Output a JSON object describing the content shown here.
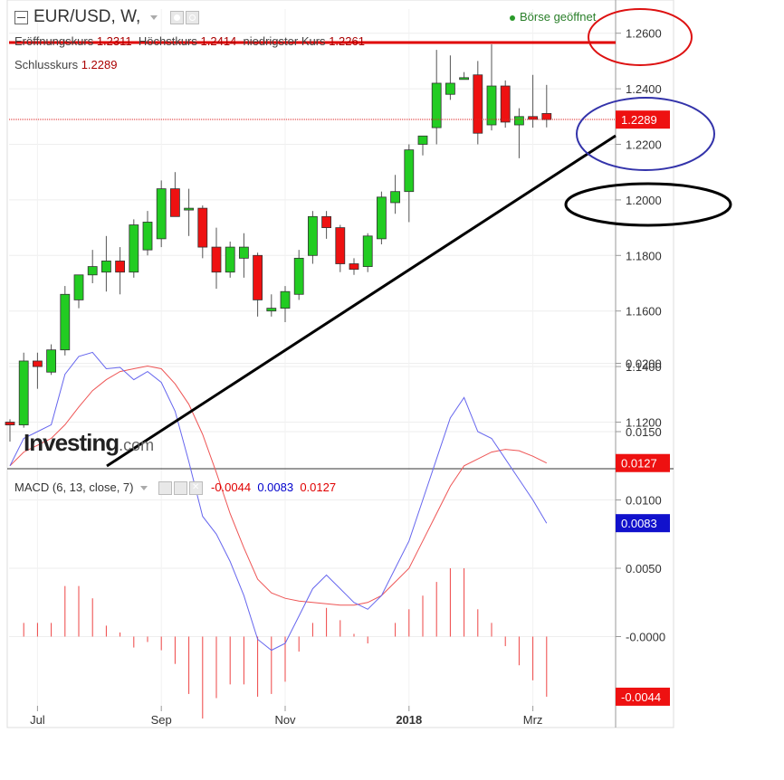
{
  "header": {
    "symbol": "EUR/USD, W,",
    "market_status": "Börse geöffnet",
    "ohlc1": [
      {
        "label": "Eröffnungskurs",
        "value": "1.2311"
      },
      {
        "label": "Höchstkurs",
        "value": "1.2414"
      },
      {
        "label": "niedrigster Kurs",
        "value": "1.2261"
      }
    ],
    "ohlc2": [
      {
        "label": "Schlusskurs",
        "value": "1.2289"
      }
    ]
  },
  "brand": {
    "name": "Investing",
    "suffix": ".com"
  },
  "macd_header": {
    "label": "MACD (6, 13, close, 7)",
    "values": [
      {
        "text": "-0.0044",
        "color": "#e00000"
      },
      {
        "text": "0.0083",
        "color": "#0000cc"
      },
      {
        "text": "0.0127",
        "color": "#e00000"
      }
    ]
  },
  "colors": {
    "up": "#22cc22",
    "down": "#ee1111",
    "macd_line": "#6666ee",
    "signal_line": "#ee5555",
    "hist": "#ee4444"
  },
  "price_axis": {
    "ticks": [
      "1.1200",
      "1.1400",
      "1.1600",
      "1.1800",
      "1.2000",
      "1.2200",
      "1.2400",
      "1.2600"
    ],
    "current": "1.2289"
  },
  "macd_axis": {
    "ticks": [
      "0.0200",
      "0.0150",
      "0.0100",
      "0.0050",
      "-0.0000"
    ],
    "badges": [
      "0.0127",
      "0.0083",
      "-0.0044"
    ]
  },
  "x_axis": {
    "labels": [
      "Jul",
      "Sep",
      "Nov",
      "2018",
      "Mrz"
    ]
  },
  "chart_data": {
    "type": "candlestick",
    "title": "EUR/USD, W,",
    "ylim": [
      1.103,
      1.268
    ],
    "candles": [
      {
        "o": 1.12,
        "h": 1.121,
        "l": 1.113,
        "c": 1.119
      },
      {
        "o": 1.119,
        "h": 1.145,
        "l": 1.118,
        "c": 1.142
      },
      {
        "o": 1.142,
        "h": 1.145,
        "l": 1.132,
        "c": 1.14
      },
      {
        "o": 1.138,
        "h": 1.148,
        "l": 1.137,
        "c": 1.146
      },
      {
        "o": 1.146,
        "h": 1.169,
        "l": 1.144,
        "c": 1.166
      },
      {
        "o": 1.164,
        "h": 1.172,
        "l": 1.161,
        "c": 1.173
      },
      {
        "o": 1.173,
        "h": 1.182,
        "l": 1.17,
        "c": 1.176
      },
      {
        "o": 1.174,
        "h": 1.187,
        "l": 1.167,
        "c": 1.178
      },
      {
        "o": 1.178,
        "h": 1.183,
        "l": 1.166,
        "c": 1.174
      },
      {
        "o": 1.174,
        "h": 1.193,
        "l": 1.172,
        "c": 1.191
      },
      {
        "o": 1.182,
        "h": 1.196,
        "l": 1.18,
        "c": 1.192
      },
      {
        "o": 1.186,
        "h": 1.207,
        "l": 1.183,
        "c": 1.204
      },
      {
        "o": 1.204,
        "h": 1.21,
        "l": 1.195,
        "c": 1.194
      },
      {
        "o": 1.197,
        "h": 1.204,
        "l": 1.187,
        "c": 1.197
      },
      {
        "o": 1.197,
        "h": 1.198,
        "l": 1.179,
        "c": 1.183
      },
      {
        "o": 1.183,
        "h": 1.19,
        "l": 1.168,
        "c": 1.174
      },
      {
        "o": 1.174,
        "h": 1.185,
        "l": 1.172,
        "c": 1.183
      },
      {
        "o": 1.179,
        "h": 1.188,
        "l": 1.172,
        "c": 1.183
      },
      {
        "o": 1.18,
        "h": 1.181,
        "l": 1.158,
        "c": 1.164
      },
      {
        "o": 1.16,
        "h": 1.166,
        "l": 1.158,
        "c": 1.161
      },
      {
        "o": 1.161,
        "h": 1.169,
        "l": 1.156,
        "c": 1.167
      },
      {
        "o": 1.166,
        "h": 1.182,
        "l": 1.164,
        "c": 1.179
      },
      {
        "o": 1.18,
        "h": 1.196,
        "l": 1.177,
        "c": 1.194
      },
      {
        "o": 1.194,
        "h": 1.196,
        "l": 1.186,
        "c": 1.19
      },
      {
        "o": 1.19,
        "h": 1.191,
        "l": 1.174,
        "c": 1.177
      },
      {
        "o": 1.177,
        "h": 1.179,
        "l": 1.173,
        "c": 1.175
      },
      {
        "o": 1.176,
        "h": 1.188,
        "l": 1.174,
        "c": 1.187
      },
      {
        "o": 1.186,
        "h": 1.203,
        "l": 1.184,
        "c": 1.201
      },
      {
        "o": 1.199,
        "h": 1.209,
        "l": 1.195,
        "c": 1.203
      },
      {
        "o": 1.203,
        "h": 1.22,
        "l": 1.192,
        "c": 1.218
      },
      {
        "o": 1.22,
        "h": 1.223,
        "l": 1.216,
        "c": 1.223
      },
      {
        "o": 1.226,
        "h": 1.254,
        "l": 1.22,
        "c": 1.242
      },
      {
        "o": 1.238,
        "h": 1.252,
        "l": 1.236,
        "c": 1.242
      },
      {
        "o": 1.244,
        "h": 1.246,
        "l": 1.244,
        "c": 1.244
      },
      {
        "o": 1.245,
        "h": 1.25,
        "l": 1.22,
        "c": 1.224
      },
      {
        "o": 1.227,
        "h": 1.256,
        "l": 1.225,
        "c": 1.241
      },
      {
        "o": 1.241,
        "h": 1.243,
        "l": 1.226,
        "c": 1.228
      },
      {
        "o": 1.227,
        "h": 1.233,
        "l": 1.215,
        "c": 1.23
      },
      {
        "o": 1.23,
        "h": 1.245,
        "l": 1.226,
        "c": 1.229
      },
      {
        "o": 1.2311,
        "h": 1.2414,
        "l": 1.2261,
        "c": 1.2289
      }
    ],
    "macd": {
      "ylim": [
        -0.0135,
        0.0225
      ],
      "macd_line": [
        0.0125,
        0.0145,
        0.015,
        0.0155,
        0.0192,
        0.0205,
        0.0208,
        0.0196,
        0.0197,
        0.0188,
        0.0194,
        0.0186,
        0.0165,
        0.0128,
        0.0088,
        0.0075,
        0.0055,
        0.003,
        -0.0002,
        -0.001,
        -0.0005,
        0.0015,
        0.0035,
        0.0045,
        0.0035,
        0.0025,
        0.002,
        0.003,
        0.005,
        0.007,
        0.01,
        0.013,
        0.016,
        0.0175,
        0.015,
        0.0145,
        0.013,
        0.0115,
        0.01,
        0.0083
      ],
      "signal_line": [
        0.0125,
        0.0135,
        0.014,
        0.0145,
        0.0155,
        0.0168,
        0.018,
        0.0188,
        0.0194,
        0.0196,
        0.0198,
        0.0196,
        0.0185,
        0.017,
        0.0148,
        0.012,
        0.009,
        0.0065,
        0.0042,
        0.0032,
        0.0028,
        0.0026,
        0.0025,
        0.0024,
        0.0023,
        0.0023,
        0.0025,
        0.003,
        0.004,
        0.005,
        0.007,
        0.009,
        0.011,
        0.0125,
        0.013,
        0.0135,
        0.0137,
        0.0136,
        0.0132,
        0.0127
      ],
      "histogram": [
        0.0,
        0.001,
        0.001,
        0.001,
        0.0037,
        0.0037,
        0.0028,
        0.0008,
        0.0003,
        -0.0008,
        -0.0004,
        -0.001,
        -0.002,
        -0.0042,
        -0.006,
        -0.0045,
        -0.0035,
        -0.0035,
        -0.0044,
        -0.0042,
        -0.0033,
        -0.0011,
        0.001,
        0.0021,
        0.0012,
        0.0002,
        -0.0005,
        0.0,
        0.001,
        0.002,
        0.003,
        0.004,
        0.005,
        0.005,
        0.002,
        0.001,
        -0.0007,
        -0.0021,
        -0.0032,
        -0.0044
      ]
    }
  }
}
